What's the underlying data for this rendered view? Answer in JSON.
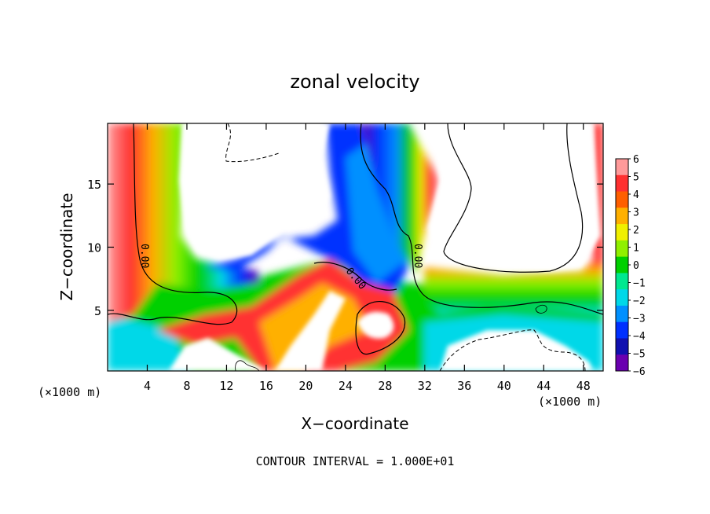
{
  "chart_data": {
    "type": "heatmap",
    "title": "zonal velocity",
    "xlabel": "X−coordinate",
    "ylabel": "Z−coordinate",
    "x_unit_label": "(×1000 m)",
    "x_unit_label_right": "(×1000 m)",
    "xlim": [
      0,
      50
    ],
    "ylim": [
      0.2,
      19.8
    ],
    "x_ticks": [
      4,
      8,
      12,
      16,
      20,
      24,
      28,
      32,
      36,
      40,
      44,
      48
    ],
    "y_ticks": [
      5,
      10,
      15
    ],
    "footer": "CONTOUR INTERVAL = 1.000E+01",
    "contour_labels": [
      {
        "text": "0.00",
        "x": 4,
        "y": 10
      },
      {
        "text": "0.00",
        "x": 25.5,
        "y": 7.5
      },
      {
        "text": "0.00",
        "x": 31.5,
        "y": 9.5
      }
    ],
    "colorbar": {
      "ticks": [
        "6",
        "5",
        "4",
        "3",
        "2",
        "1",
        "0",
        "−1",
        "−2",
        "−3",
        "−4",
        "−5",
        "−6"
      ],
      "colors": [
        "#ff9a9a",
        "#ff3030",
        "#ff5f00",
        "#ffb000",
        "#f0f000",
        "#90f000",
        "#00d000",
        "#00e890",
        "#00d8e8",
        "#0090ff",
        "#0030ff",
        "#1010b0",
        "#6a00b0"
      ]
    },
    "regions": [
      {
        "name": "left-warm-band",
        "value": 3
      },
      {
        "name": "lower-left-fill",
        "value": 0
      },
      {
        "name": "upper-left-void",
        "value": null
      },
      {
        "name": "central-blue-column",
        "value": -4
      },
      {
        "name": "central-red-tongue",
        "value": 4
      },
      {
        "name": "lower-center-void",
        "value": null
      },
      {
        "name": "upper-right-void",
        "value": null
      },
      {
        "name": "right-red-band",
        "value": 4
      },
      {
        "name": "lower-right-void",
        "value": null
      }
    ]
  }
}
